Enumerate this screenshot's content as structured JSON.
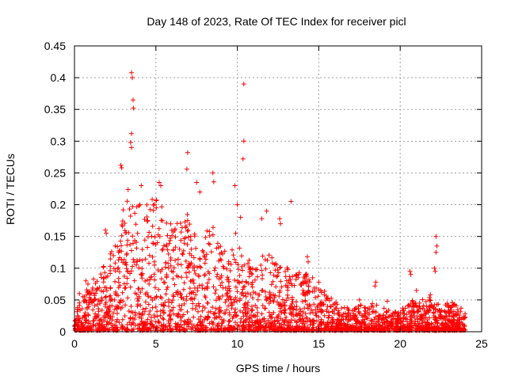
{
  "chart_data": {
    "type": "scatter",
    "title": "Day 148 of 2023, Rate Of TEC Index for receiver picl",
    "xlabel": "GPS time / hours",
    "ylabel": "ROTI / TECUs",
    "xlim": [
      0,
      25
    ],
    "ylim": [
      0,
      0.45
    ],
    "xticks": [
      0,
      5,
      10,
      15,
      20,
      25
    ],
    "xtick_labels": [
      "0",
      "5",
      "10",
      "15",
      "20",
      "25"
    ],
    "yticks": [
      0,
      0.05,
      0.1,
      0.15,
      0.2,
      0.25,
      0.3,
      0.35,
      0.4,
      0.45
    ],
    "ytick_labels": [
      "0",
      "0.05",
      "0.1",
      "0.15",
      "0.2",
      "0.25",
      "0.3",
      "0.35",
      "0.4",
      "0.45"
    ],
    "grid": true,
    "marker": "+",
    "color": "#ff0000",
    "data_range_hours": [
      0,
      24
    ],
    "envelope": [
      {
        "x": 0.0,
        "y": 0.035
      },
      {
        "x": 0.5,
        "y": 0.06
      },
      {
        "x": 1.0,
        "y": 0.08
      },
      {
        "x": 1.5,
        "y": 0.09
      },
      {
        "x": 2.0,
        "y": 0.12
      },
      {
        "x": 2.5,
        "y": 0.14
      },
      {
        "x": 3.0,
        "y": 0.2
      },
      {
        "x": 3.5,
        "y": 0.24
      },
      {
        "x": 4.0,
        "y": 0.2
      },
      {
        "x": 4.5,
        "y": 0.2
      },
      {
        "x": 5.0,
        "y": 0.22
      },
      {
        "x": 5.5,
        "y": 0.19
      },
      {
        "x": 6.0,
        "y": 0.17
      },
      {
        "x": 6.5,
        "y": 0.17
      },
      {
        "x": 7.0,
        "y": 0.19
      },
      {
        "x": 7.5,
        "y": 0.16
      },
      {
        "x": 8.0,
        "y": 0.16
      },
      {
        "x": 8.5,
        "y": 0.18
      },
      {
        "x": 9.0,
        "y": 0.14
      },
      {
        "x": 9.5,
        "y": 0.13
      },
      {
        "x": 10.0,
        "y": 0.14
      },
      {
        "x": 10.5,
        "y": 0.12
      },
      {
        "x": 11.0,
        "y": 0.1
      },
      {
        "x": 11.5,
        "y": 0.13
      },
      {
        "x": 12.0,
        "y": 0.12
      },
      {
        "x": 12.5,
        "y": 0.1
      },
      {
        "x": 13.0,
        "y": 0.1
      },
      {
        "x": 13.5,
        "y": 0.09
      },
      {
        "x": 14.0,
        "y": 0.1
      },
      {
        "x": 14.5,
        "y": 0.09
      },
      {
        "x": 15.0,
        "y": 0.07
      },
      {
        "x": 15.5,
        "y": 0.06
      },
      {
        "x": 16.0,
        "y": 0.045
      },
      {
        "x": 16.5,
        "y": 0.04
      },
      {
        "x": 17.0,
        "y": 0.035
      },
      {
        "x": 17.5,
        "y": 0.04
      },
      {
        "x": 18.0,
        "y": 0.04
      },
      {
        "x": 18.5,
        "y": 0.045
      },
      {
        "x": 19.0,
        "y": 0.035
      },
      {
        "x": 19.5,
        "y": 0.03
      },
      {
        "x": 20.0,
        "y": 0.03
      },
      {
        "x": 20.5,
        "y": 0.05
      },
      {
        "x": 21.0,
        "y": 0.045
      },
      {
        "x": 21.5,
        "y": 0.05
      },
      {
        "x": 22.0,
        "y": 0.06
      },
      {
        "x": 22.5,
        "y": 0.04
      },
      {
        "x": 23.0,
        "y": 0.045
      },
      {
        "x": 23.5,
        "y": 0.045
      },
      {
        "x": 24.0,
        "y": 0.03
      }
    ],
    "outliers": [
      {
        "x": 3.5,
        "y": 0.408
      },
      {
        "x": 3.55,
        "y": 0.4
      },
      {
        "x": 3.6,
        "y": 0.365
      },
      {
        "x": 3.62,
        "y": 0.352
      },
      {
        "x": 3.5,
        "y": 0.312
      },
      {
        "x": 3.45,
        "y": 0.298
      },
      {
        "x": 3.5,
        "y": 0.29
      },
      {
        "x": 2.85,
        "y": 0.262
      },
      {
        "x": 2.9,
        "y": 0.258
      },
      {
        "x": 10.4,
        "y": 0.39
      },
      {
        "x": 10.4,
        "y": 0.3
      },
      {
        "x": 10.35,
        "y": 0.272
      },
      {
        "x": 6.95,
        "y": 0.282
      },
      {
        "x": 6.9,
        "y": 0.256
      },
      {
        "x": 8.5,
        "y": 0.25
      },
      {
        "x": 8.55,
        "y": 0.236
      },
      {
        "x": 9.85,
        "y": 0.23
      },
      {
        "x": 13.3,
        "y": 0.205
      },
      {
        "x": 11.8,
        "y": 0.19
      },
      {
        "x": 11.5,
        "y": 0.178
      },
      {
        "x": 12.6,
        "y": 0.178
      },
      {
        "x": 12.65,
        "y": 0.17
      },
      {
        "x": 10.0,
        "y": 0.2
      },
      {
        "x": 10.2,
        "y": 0.18
      },
      {
        "x": 9.9,
        "y": 0.155
      },
      {
        "x": 14.3,
        "y": 0.118
      },
      {
        "x": 14.35,
        "y": 0.11
      },
      {
        "x": 18.5,
        "y": 0.078
      },
      {
        "x": 18.45,
        "y": 0.072
      },
      {
        "x": 20.6,
        "y": 0.095
      },
      {
        "x": 20.65,
        "y": 0.09
      },
      {
        "x": 22.2,
        "y": 0.15
      },
      {
        "x": 22.25,
        "y": 0.135
      },
      {
        "x": 22.2,
        "y": 0.125
      },
      {
        "x": 22.1,
        "y": 0.1
      },
      {
        "x": 22.15,
        "y": 0.095
      },
      {
        "x": 21.0,
        "y": 0.065
      },
      {
        "x": 17.5,
        "y": 0.05
      },
      {
        "x": 19.2,
        "y": 0.048
      },
      {
        "x": 15.0,
        "y": 0.078
      },
      {
        "x": 1.9,
        "y": 0.16
      },
      {
        "x": 1.95,
        "y": 0.155
      },
      {
        "x": 0.7,
        "y": 0.08
      },
      {
        "x": 0.3,
        "y": 0.06
      },
      {
        "x": 4.5,
        "y": 0.175
      },
      {
        "x": 5.2,
        "y": 0.235
      },
      {
        "x": 5.3,
        "y": 0.23
      },
      {
        "x": 7.5,
        "y": 0.235
      },
      {
        "x": 7.7,
        "y": 0.22
      },
      {
        "x": 4.1,
        "y": 0.23
      },
      {
        "x": 2.5,
        "y": 0.135
      }
    ]
  }
}
